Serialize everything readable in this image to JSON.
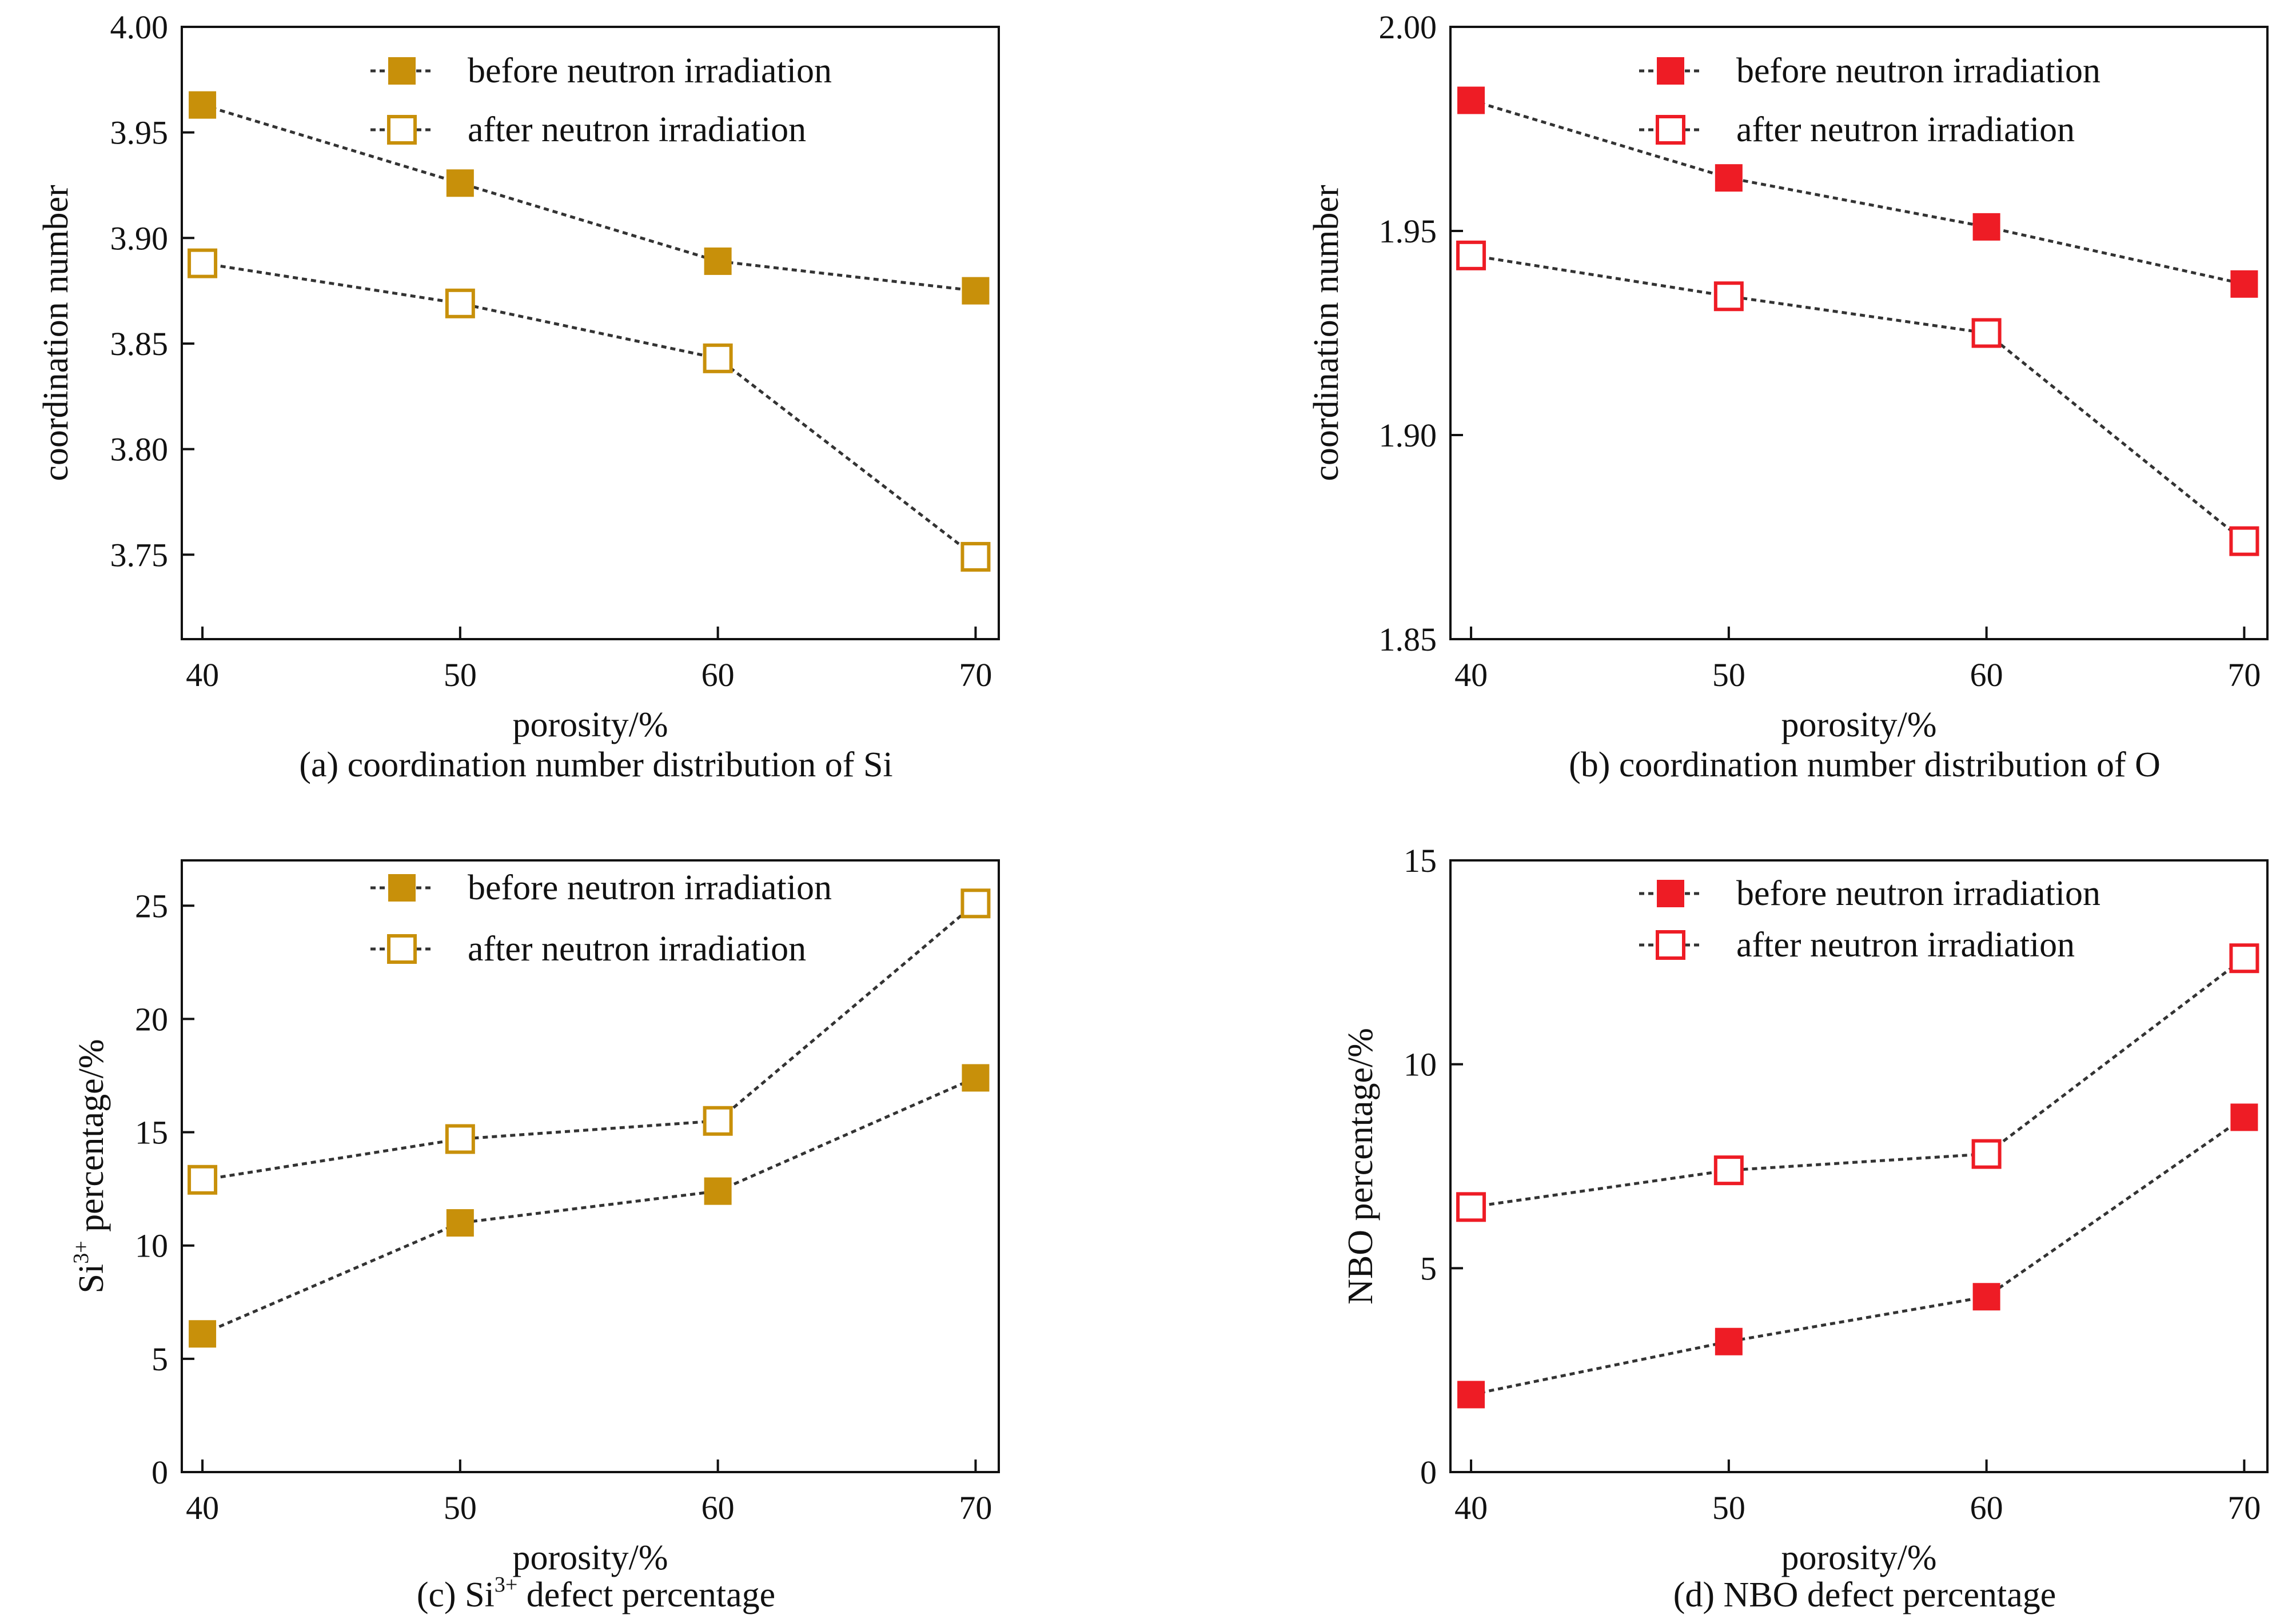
{
  "chart_data": [
    {
      "id": "a",
      "type": "line",
      "caption": "(a) coordination number distribution of Si",
      "xlabel": "porosity/%",
      "ylabel": "coordination number",
      "x": [
        40,
        50,
        60,
        70
      ],
      "xticks": [
        "40",
        "50",
        "60",
        "70"
      ],
      "xlim": [
        39.2,
        70.9
      ],
      "ylim": [
        3.71,
        4.0
      ],
      "yticks": [
        3.75,
        3.8,
        3.85,
        3.9,
        3.95,
        4.0
      ],
      "ytick_labels": [
        "3.75",
        "3.80",
        "3.85",
        "3.90",
        "3.95",
        "4.00"
      ],
      "grid": false,
      "legend_position": "top-right",
      "series": [
        {
          "name": "before neutron irradiation",
          "marker": "filled-square",
          "color": "#C8900A",
          "values": [
            3.963,
            3.926,
            3.889,
            3.875
          ]
        },
        {
          "name": "after neutron irradiation",
          "marker": "open-square",
          "color": "#C8900A",
          "values": [
            3.888,
            3.869,
            3.843,
            3.749
          ]
        }
      ]
    },
    {
      "id": "b",
      "type": "line",
      "caption": "(b) coordination number distribution of O",
      "xlabel": "porosity/%",
      "ylabel": "coordination number",
      "x": [
        40,
        50,
        60,
        70
      ],
      "xticks": [
        "40",
        "50",
        "60",
        "70"
      ],
      "xlim": [
        39.2,
        70.9
      ],
      "ylim": [
        1.85,
        2.0
      ],
      "yticks": [
        1.85,
        1.9,
        1.95,
        2.0
      ],
      "ytick_labels": [
        "1.85",
        "1.90",
        "1.95",
        "2.00"
      ],
      "grid": false,
      "legend_position": "top-right",
      "series": [
        {
          "name": "before neutron irradiation",
          "marker": "filled-square",
          "color": "#EE1C25",
          "values": [
            1.982,
            1.963,
            1.951,
            1.937
          ]
        },
        {
          "name": "after neutron irradiation",
          "marker": "open-square",
          "color": "#EE1C25",
          "values": [
            1.944,
            1.934,
            1.925,
            1.874
          ]
        }
      ]
    },
    {
      "id": "c",
      "type": "line",
      "caption_prefix": "(c) Si",
      "caption_sup": "3+",
      "caption_suffix": " defect percentage",
      "xlabel": "porosity/%",
      "ylabel_prefix": "Si",
      "ylabel_sup": "3+",
      "ylabel_suffix": " percentage/%",
      "x": [
        40,
        50,
        60,
        70
      ],
      "xticks": [
        "40",
        "50",
        "60",
        "70"
      ],
      "xlim": [
        39.2,
        70.9
      ],
      "ylim": [
        0,
        27
      ],
      "yticks": [
        0,
        5,
        10,
        15,
        20,
        25
      ],
      "ytick_labels": [
        "0",
        "5",
        "10",
        "15",
        "20",
        "25"
      ],
      "grid": false,
      "legend_position": "top-right",
      "series": [
        {
          "name": "before neutron irradiation",
          "marker": "filled-square",
          "color": "#C8900A",
          "values": [
            6.1,
            11.0,
            12.4,
            17.4
          ]
        },
        {
          "name": "after neutron irradiation",
          "marker": "open-square",
          "color": "#C8900A",
          "values": [
            12.9,
            14.7,
            15.5,
            25.1
          ]
        }
      ]
    },
    {
      "id": "d",
      "type": "line",
      "caption": "(d) NBO defect percentage",
      "xlabel": "porosity/%",
      "ylabel": "NBO percentage/%",
      "x": [
        40,
        50,
        60,
        70
      ],
      "xticks": [
        "40",
        "50",
        "60",
        "70"
      ],
      "xlim": [
        39.2,
        70.9
      ],
      "ylim": [
        0,
        15
      ],
      "yticks": [
        0,
        5,
        10,
        15
      ],
      "ytick_labels": [
        "0",
        "5",
        "10",
        "15"
      ],
      "grid": false,
      "legend_position": "top-right",
      "series": [
        {
          "name": "before neutron irradiation",
          "marker": "filled-square",
          "color": "#EE1C25",
          "values": [
            1.9,
            3.2,
            4.3,
            8.7
          ]
        },
        {
          "name": "after neutron irradiation",
          "marker": "open-square",
          "color": "#EE1C25",
          "values": [
            6.5,
            7.4,
            7.8,
            12.6
          ]
        }
      ]
    }
  ]
}
